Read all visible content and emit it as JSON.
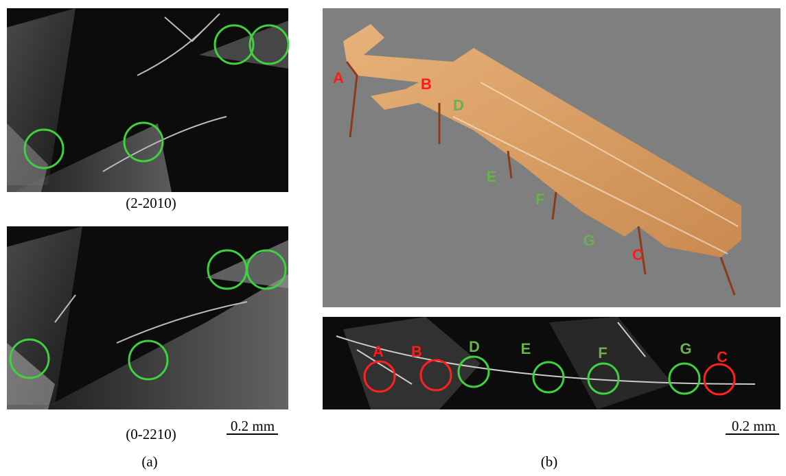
{
  "panel_a": {
    "label": "(a)",
    "images": [
      {
        "caption": "(2-2010)"
      },
      {
        "caption": "(0-2210)"
      }
    ],
    "scale_bar": "0.2 mm"
  },
  "panel_b": {
    "label": "(b)",
    "scale_bar": "0.2 mm",
    "topography_labels": [
      "A",
      "B",
      "D",
      "E",
      "F",
      "G",
      "C"
    ],
    "xray_labels": [
      "A",
      "B",
      "D",
      "E",
      "F",
      "G",
      "C"
    ]
  }
}
